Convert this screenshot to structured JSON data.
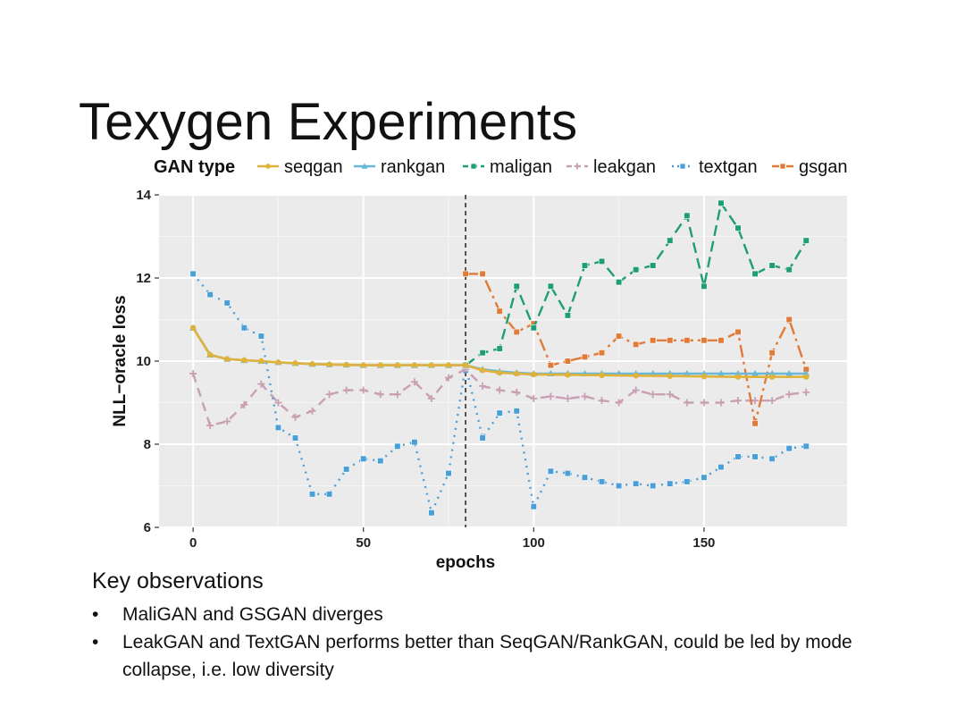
{
  "slide": {
    "title": "Texygen Experiments",
    "observations_heading": "Key observations",
    "bullet_glyph": "•",
    "bullets": [
      "MaliGAN and GSGAN diverges",
      "LeakGAN and TextGAN performs better than SeqGAN/RankGAN, could be led by mode collapse, i.e. low diversity"
    ]
  },
  "chart_data": {
    "type": "line",
    "title": "",
    "legend_title": "GAN type",
    "legend_placement": "top",
    "xlabel": "epochs",
    "ylabel": "NLL−oracle loss",
    "xlim": [
      -10,
      192
    ],
    "ylim": [
      6,
      14
    ],
    "xticks": [
      0,
      50,
      100,
      150
    ],
    "yticks": [
      6,
      8,
      10,
      12,
      14
    ],
    "grid": true,
    "vline": 80,
    "series": [
      {
        "name": "seqgan",
        "color": "#e0b23a",
        "dash": "",
        "marker": "circle",
        "x": [
          0,
          5,
          10,
          15,
          20,
          25,
          30,
          35,
          40,
          45,
          50,
          55,
          60,
          65,
          70,
          75,
          80,
          85,
          90,
          95,
          100,
          110,
          120,
          130,
          140,
          150,
          160,
          170,
          180
        ],
        "y": [
          10.8,
          10.15,
          10.05,
          10.02,
          10.0,
          9.97,
          9.95,
          9.93,
          9.92,
          9.91,
          9.9,
          9.9,
          9.9,
          9.9,
          9.9,
          9.9,
          9.9,
          9.78,
          9.72,
          9.7,
          9.68,
          9.67,
          9.66,
          9.65,
          9.64,
          9.63,
          9.62,
          9.62,
          9.62
        ]
      },
      {
        "name": "rankgan",
        "color": "#6ab8d8",
        "dash": "",
        "marker": "triangle",
        "x": [
          0,
          5,
          10,
          15,
          20,
          25,
          30,
          35,
          40,
          45,
          50,
          55,
          60,
          65,
          70,
          75,
          80,
          85,
          90,
          95,
          100,
          105,
          110,
          115,
          120,
          125,
          130,
          135,
          140,
          145,
          150,
          155,
          160,
          165,
          170,
          175,
          180
        ],
        "y": [
          10.8,
          10.15,
          10.05,
          10.02,
          10.0,
          9.97,
          9.95,
          9.93,
          9.92,
          9.91,
          9.9,
          9.9,
          9.9,
          9.9,
          9.9,
          9.9,
          9.9,
          9.8,
          9.75,
          9.72,
          9.7,
          9.7,
          9.7,
          9.7,
          9.7,
          9.7,
          9.7,
          9.7,
          9.7,
          9.7,
          9.7,
          9.7,
          9.7,
          9.7,
          9.7,
          9.7,
          9.7
        ]
      },
      {
        "name": "maligan",
        "color": "#1f9e74",
        "dash": "12 6",
        "marker": "square",
        "x": [
          80,
          85,
          90,
          95,
          100,
          105,
          110,
          115,
          120,
          125,
          130,
          135,
          140,
          145,
          150,
          155,
          160,
          165,
          170,
          175,
          180
        ],
        "y": [
          9.9,
          10.2,
          10.3,
          11.8,
          10.8,
          11.8,
          11.1,
          12.3,
          12.4,
          11.9,
          12.2,
          12.3,
          12.9,
          13.5,
          11.8,
          13.8,
          13.2,
          12.1,
          12.3,
          12.2,
          12.9
        ]
      },
      {
        "name": "leakgan",
        "color": "#c9a0b3",
        "dash": "10 7",
        "marker": "plus",
        "x": [
          0,
          5,
          10,
          15,
          20,
          25,
          30,
          35,
          40,
          45,
          50,
          55,
          60,
          65,
          70,
          75,
          80,
          85,
          90,
          95,
          100,
          105,
          110,
          115,
          120,
          125,
          130,
          135,
          140,
          145,
          150,
          155,
          160,
          165,
          170,
          175,
          180
        ],
        "y": [
          9.7,
          8.45,
          8.55,
          8.95,
          9.45,
          9.0,
          8.65,
          8.8,
          9.2,
          9.3,
          9.3,
          9.2,
          9.2,
          9.5,
          9.1,
          9.6,
          9.8,
          9.4,
          9.3,
          9.25,
          9.1,
          9.15,
          9.1,
          9.15,
          9.05,
          9.0,
          9.3,
          9.2,
          9.2,
          9.0,
          9.0,
          9.0,
          9.05,
          9.05,
          9.05,
          9.2,
          9.25
        ]
      },
      {
        "name": "textgan",
        "color": "#4a9fd6",
        "dash": "2 6",
        "marker": "square",
        "x": [
          0,
          5,
          10,
          15,
          20,
          25,
          30,
          35,
          40,
          45,
          50,
          55,
          60,
          65,
          70,
          75,
          80,
          85,
          90,
          95,
          100,
          105,
          110,
          115,
          120,
          125,
          130,
          135,
          140,
          145,
          150,
          155,
          160,
          165,
          170,
          175,
          180
        ],
        "y": [
          12.1,
          11.6,
          11.4,
          10.8,
          10.6,
          8.4,
          8.15,
          6.8,
          6.8,
          7.4,
          7.65,
          7.6,
          7.95,
          8.05,
          6.35,
          7.3,
          9.9,
          8.15,
          8.75,
          8.8,
          6.5,
          7.35,
          7.3,
          7.2,
          7.1,
          7.0,
          7.05,
          7.0,
          7.05,
          7.1,
          7.2,
          7.45,
          7.7,
          7.7,
          7.65,
          7.9,
          7.95
        ]
      },
      {
        "name": "gsgan",
        "color": "#e07b39",
        "dash": "14 5 3 5",
        "marker": "square",
        "x": [
          80,
          85,
          90,
          95,
          100,
          105,
          110,
          115,
          120,
          125,
          130,
          135,
          140,
          145,
          150,
          155,
          160,
          165,
          170,
          175,
          180
        ],
        "y": [
          12.1,
          12.1,
          11.2,
          10.7,
          10.9,
          9.9,
          10.0,
          10.1,
          10.2,
          10.6,
          10.4,
          10.5,
          10.5,
          10.5,
          10.5,
          10.5,
          10.7,
          8.5,
          10.2,
          11.0,
          9.8
        ]
      }
    ]
  }
}
